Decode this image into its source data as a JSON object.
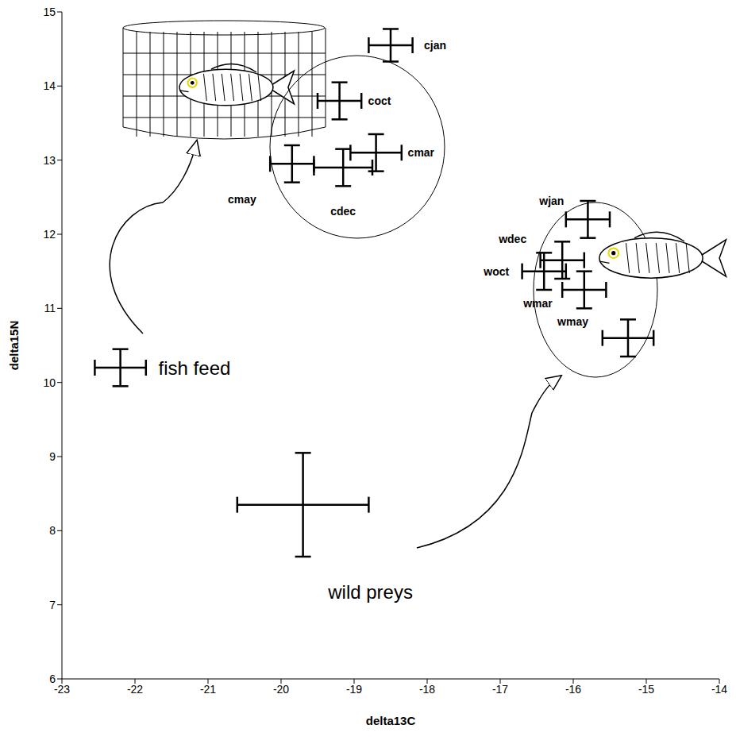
{
  "chart_data": {
    "type": "scatter",
    "x_label": "delta13C",
    "y_label": "delta15N",
    "xlim": [
      -23,
      -14
    ],
    "ylim": [
      6,
      15
    ],
    "xticks": [
      -23,
      -22,
      -21,
      -20,
      -19,
      -18,
      -17,
      -16,
      -15,
      -14
    ],
    "yticks": [
      6,
      7,
      8,
      9,
      10,
      11,
      12,
      13,
      14,
      15
    ],
    "grid": false,
    "color": "#000000",
    "points": [
      {
        "label": "cjan",
        "x": -18.5,
        "y": 14.55,
        "x_error": 0.3,
        "y_error": 0.22
      },
      {
        "label": "coct",
        "x": -19.2,
        "y": 13.8,
        "x_error": 0.3,
        "y_error": 0.25
      },
      {
        "label": "cmar",
        "x": -18.7,
        "y": 13.1,
        "x_error": 0.35,
        "y_error": 0.25
      },
      {
        "label": "cdec",
        "x": -19.15,
        "y": 12.9,
        "x_error": 0.4,
        "y_error": 0.25
      },
      {
        "label": "cmay",
        "x": -19.85,
        "y": 12.95,
        "x_error": 0.3,
        "y_error": 0.25
      },
      {
        "label": "wjan",
        "x": -15.8,
        "y": 12.2,
        "x_error": 0.3,
        "y_error": 0.25
      },
      {
        "label": "wdec",
        "x": -16.15,
        "y": 11.65,
        "x_error": 0.3,
        "y_error": 0.25
      },
      {
        "label": "woct",
        "x": -16.4,
        "y": 11.5,
        "x_error": 0.3,
        "y_error": 0.25
      },
      {
        "label": "wmar",
        "x": -15.85,
        "y": 11.25,
        "x_error": 0.3,
        "y_error": 0.25
      },
      {
        "label": "wmay",
        "x": -15.25,
        "y": 10.6,
        "x_error": 0.35,
        "y_error": 0.25
      },
      {
        "label": "fish feed",
        "x": -22.2,
        "y": 10.2,
        "x_error": 0.35,
        "y_error": 0.25
      },
      {
        "label": "wild preys",
        "x": -19.7,
        "y": 8.35,
        "x_error": 0.9,
        "y_error": 0.7
      }
    ]
  }
}
